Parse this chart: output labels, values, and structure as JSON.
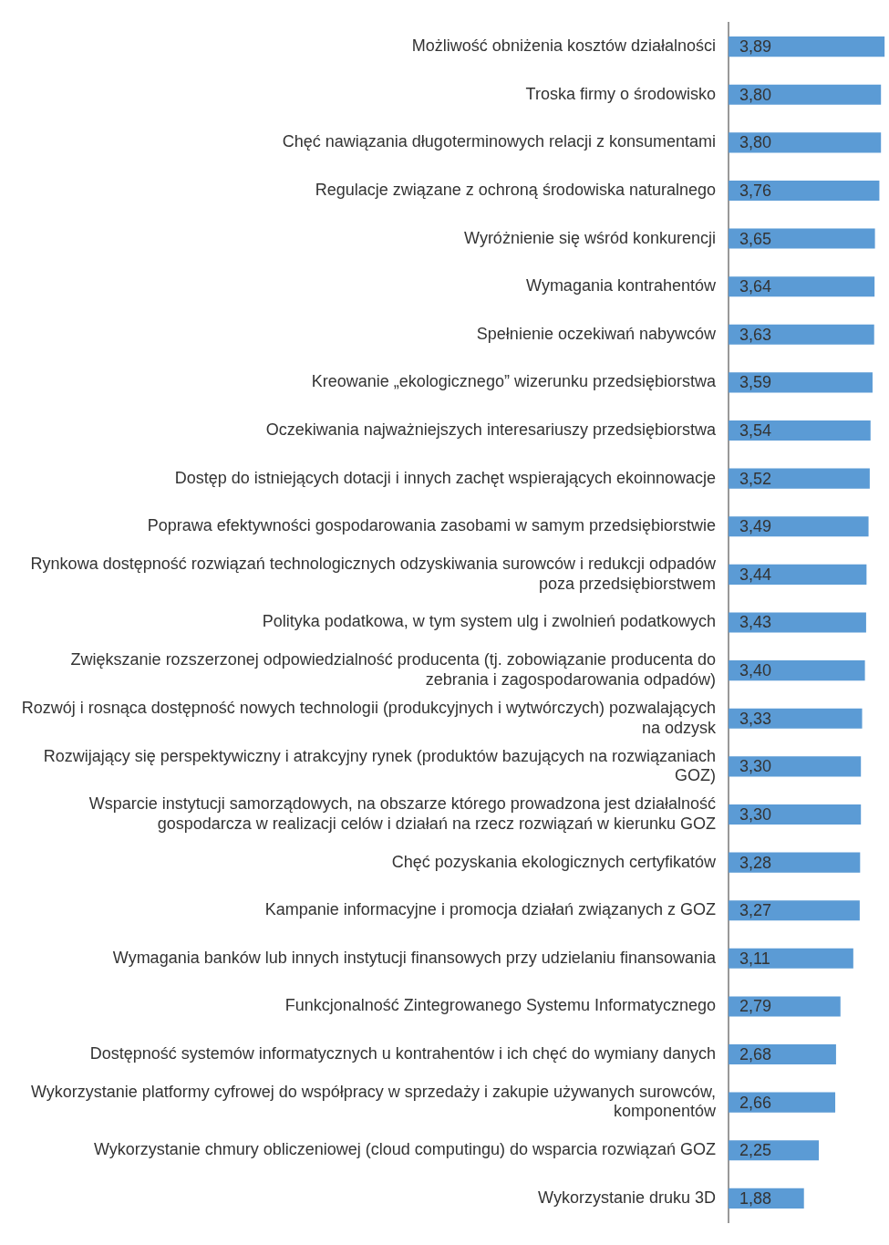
{
  "chart_data": {
    "type": "bar",
    "orientation": "horizontal",
    "categories": [
      "Możliwość obniżenia kosztów działalności",
      "Troska firmy o środowisko",
      "Chęć nawiązania długoterminowych relacji z konsumentami",
      "Regulacje związane z ochroną środowiska naturalnego",
      "Wyróżnienie się wśród konkurencji",
      "Wymagania kontrahentów",
      "Spełnienie oczekiwań nabywców",
      "Kreowanie „ekologicznego” wizerunku przedsiębiorstwa",
      "Oczekiwania najważniejszych interesariuszy przedsiębiorstwa",
      "Dostęp do istniejących dotacji i innych zachęt wspierających ekoinnowacje",
      "Poprawa efektywności gospodarowania zasobami w samym przedsiębiorstwie",
      "Rynkowa dostępność rozwiązań technologicznych odzyskiwania surowców i redukcji odpadów poza przedsiębiorstwem",
      "Polityka podatkowa, w tym system ulg i zwolnień podatkowych",
      "Zwiększanie rozszerzonej odpowiedzialność producenta (tj. zobowiązanie producenta do zebrania i zagospodarowania odpadów)",
      "Rozwój i rosnąca dostępność nowych technologii (produkcyjnych i wytwórczych) pozwalających na odzysk",
      "Rozwijający się perspektywiczny i atrakcyjny rynek (produktów bazujących na rozwiązaniach GOZ)",
      "Wsparcie instytucji samorządowych, na obszarze którego prowadzona jest działalność gospodarcza w realizacji celów i działań na rzecz rozwiązań w kierunku GOZ",
      "Chęć pozyskania ekologicznych certyfikatów",
      "Kampanie informacyjne i promocja działań związanych z GOZ",
      "Wymagania banków lub innych instytucji finansowych przy udzielaniu finansowania",
      "Funkcjonalność Zintegrowanego Systemu Informatycznego",
      "Dostępność systemów informatycznych u kontrahentów i ich chęć do wymiany danych",
      "Wykorzystanie platformy cyfrowej do współpracy w sprzedaży i zakupie używanych surowców, komponentów",
      "Wykorzystanie chmury obliczeniowej (cloud computingu) do wsparcia rozwiązań GOZ",
      "Wykorzystanie druku 3D"
    ],
    "values": [
      3.89,
      3.8,
      3.8,
      3.76,
      3.65,
      3.64,
      3.63,
      3.59,
      3.54,
      3.52,
      3.49,
      3.44,
      3.43,
      3.4,
      3.33,
      3.3,
      3.3,
      3.28,
      3.27,
      3.11,
      2.79,
      2.68,
      2.66,
      2.25,
      1.88
    ],
    "value_labels": [
      "3,89",
      "3,80",
      "3,80",
      "3,76",
      "3,65",
      "3,64",
      "3,63",
      "3,59",
      "3,54",
      "3,52",
      "3,49",
      "3,44",
      "3,43",
      "3,40",
      "3,33",
      "3,30",
      "3,30",
      "3,28",
      "3,27",
      "3,11",
      "2,79",
      "2,68",
      "2,66",
      "2,25",
      "1,88"
    ],
    "color": "#5b9bd5",
    "grid": false,
    "legend": false
  }
}
